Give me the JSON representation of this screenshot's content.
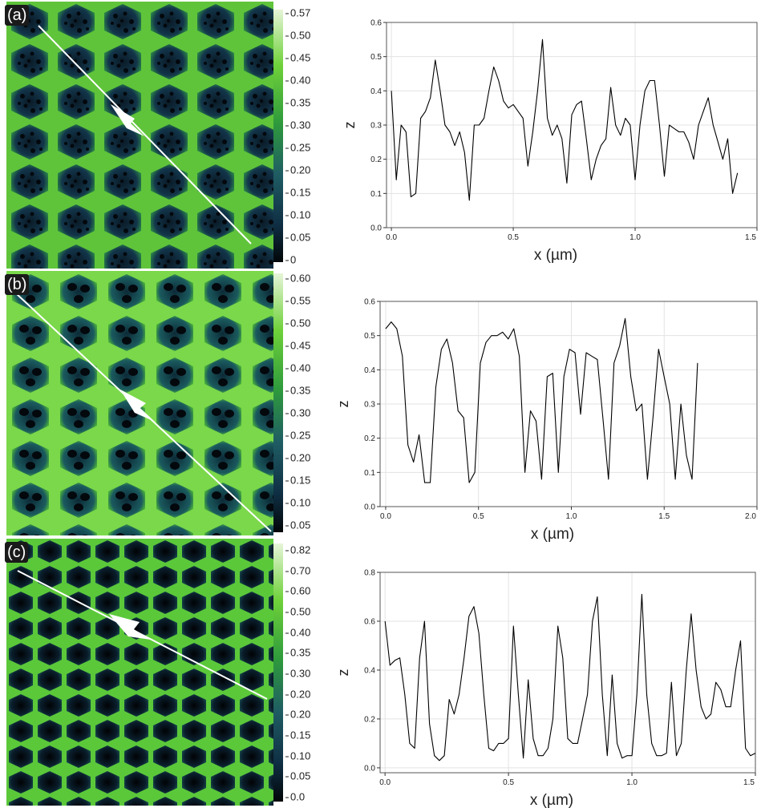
{
  "panels": [
    {
      "label": "(a)",
      "colorbar_ticks": [
        "0.57",
        "0.50",
        "0.45",
        "0.40",
        "0.35",
        "0.30",
        "0.25",
        "0.20",
        "0.15",
        "0.10",
        "0.05",
        "0"
      ]
    },
    {
      "label": "(b)",
      "colorbar_ticks": [
        "0.60",
        "0.55",
        "0.50",
        "0.45",
        "0.40",
        "0.35",
        "0.30",
        "0.25",
        "0.20",
        "0.15",
        "0.10",
        "0.05"
      ]
    },
    {
      "label": "(c)",
      "colorbar_ticks": [
        "0.82",
        "0.70",
        "0.60",
        "0.50",
        "0.40",
        "0.35",
        "0.30",
        "0.20",
        "0.20",
        "0.15",
        "0.10",
        "0.05",
        "0.0"
      ]
    }
  ],
  "colors": {
    "map_dark": "#0b1d2a",
    "map_mid": "#1f5d63",
    "map_bright": "#6fd13a",
    "colorbar_top": "#e6f5d8",
    "line": "#000000",
    "grid": "#e3e3e3"
  },
  "chart_data": [
    {
      "type": "line",
      "xlabel": "x (µm)",
      "ylabel": "z",
      "xlim": [
        -0.02,
        1.5
      ],
      "ylim": [
        0,
        0.6
      ],
      "xticks": [
        "0.0",
        "0.5",
        "1.0",
        "1.5"
      ],
      "xtick_values": [
        0,
        0.5,
        1.0,
        1.5
      ],
      "yticks": [
        "0.0",
        "0.1",
        "0.2",
        "0.3",
        "0.4",
        "0.5",
        "0.6"
      ],
      "ytick_values": [
        0,
        0.1,
        0.2,
        0.3,
        0.4,
        0.5,
        0.6
      ],
      "x": [
        0.0,
        0.02,
        0.04,
        0.06,
        0.08,
        0.1,
        0.12,
        0.14,
        0.16,
        0.18,
        0.2,
        0.22,
        0.24,
        0.26,
        0.28,
        0.3,
        0.32,
        0.34,
        0.36,
        0.38,
        0.4,
        0.42,
        0.44,
        0.46,
        0.48,
        0.5,
        0.52,
        0.54,
        0.56,
        0.58,
        0.6,
        0.62,
        0.64,
        0.66,
        0.68,
        0.7,
        0.72,
        0.74,
        0.76,
        0.78,
        0.8,
        0.82,
        0.84,
        0.86,
        0.88,
        0.9,
        0.92,
        0.94,
        0.96,
        0.98,
        1.0,
        1.02,
        1.04,
        1.06,
        1.08,
        1.1,
        1.12,
        1.14,
        1.16,
        1.18,
        1.2,
        1.22,
        1.24,
        1.26,
        1.28,
        1.3,
        1.32,
        1.34,
        1.36,
        1.38,
        1.4,
        1.42
      ],
      "y": [
        0.4,
        0.14,
        0.3,
        0.28,
        0.09,
        0.1,
        0.32,
        0.34,
        0.38,
        0.49,
        0.4,
        0.3,
        0.28,
        0.24,
        0.28,
        0.22,
        0.08,
        0.3,
        0.3,
        0.32,
        0.4,
        0.47,
        0.43,
        0.37,
        0.35,
        0.36,
        0.34,
        0.32,
        0.18,
        0.28,
        0.4,
        0.55,
        0.32,
        0.27,
        0.3,
        0.26,
        0.13,
        0.33,
        0.36,
        0.37,
        0.26,
        0.14,
        0.2,
        0.24,
        0.26,
        0.41,
        0.3,
        0.27,
        0.32,
        0.3,
        0.14,
        0.3,
        0.4,
        0.43,
        0.43,
        0.3,
        0.15,
        0.3,
        0.29,
        0.28,
        0.28,
        0.25,
        0.2,
        0.3,
        0.34,
        0.38,
        0.3,
        0.25,
        0.2,
        0.26,
        0.1,
        0.16
      ]
    },
    {
      "type": "line",
      "xlabel": "x (µm)",
      "ylabel": "z",
      "xlim": [
        -0.03,
        2.0
      ],
      "ylim": [
        0,
        0.6
      ],
      "xticks": [
        "0.0",
        "0.5",
        "1.0",
        "1.5",
        "2.0"
      ],
      "xtick_values": [
        0,
        0.5,
        1.0,
        1.5,
        2.0
      ],
      "yticks": [
        "0.0",
        "0.1",
        "0.2",
        "0.3",
        "0.4",
        "0.5",
        "0.6"
      ],
      "ytick_values": [
        0,
        0.1,
        0.2,
        0.3,
        0.4,
        0.5,
        0.6
      ],
      "x": [
        0.0,
        0.03,
        0.06,
        0.09,
        0.12,
        0.15,
        0.18,
        0.21,
        0.24,
        0.27,
        0.3,
        0.33,
        0.36,
        0.39,
        0.42,
        0.45,
        0.48,
        0.51,
        0.54,
        0.57,
        0.6,
        0.63,
        0.66,
        0.69,
        0.72,
        0.75,
        0.78,
        0.81,
        0.84,
        0.87,
        0.9,
        0.93,
        0.96,
        0.99,
        1.02,
        1.05,
        1.08,
        1.11,
        1.14,
        1.17,
        1.2,
        1.23,
        1.26,
        1.29,
        1.32,
        1.35,
        1.38,
        1.41,
        1.44,
        1.47,
        1.5,
        1.53,
        1.56,
        1.59,
        1.62,
        1.65,
        1.68
      ],
      "y": [
        0.52,
        0.54,
        0.52,
        0.44,
        0.18,
        0.13,
        0.21,
        0.07,
        0.07,
        0.35,
        0.46,
        0.49,
        0.42,
        0.28,
        0.26,
        0.07,
        0.1,
        0.42,
        0.48,
        0.5,
        0.5,
        0.51,
        0.49,
        0.52,
        0.44,
        0.1,
        0.28,
        0.25,
        0.08,
        0.38,
        0.39,
        0.1,
        0.38,
        0.46,
        0.45,
        0.27,
        0.45,
        0.44,
        0.43,
        0.26,
        0.08,
        0.42,
        0.47,
        0.55,
        0.38,
        0.28,
        0.3,
        0.08,
        0.26,
        0.46,
        0.38,
        0.3,
        0.08,
        0.3,
        0.15,
        0.08,
        0.42
      ]
    },
    {
      "type": "line",
      "xlabel": "x (µm)",
      "ylabel": "z",
      "xlim": [
        -0.02,
        1.5
      ],
      "ylim": [
        -0.02,
        0.8
      ],
      "xticks": [
        "0.0",
        "0.5",
        "1.0",
        "1.5"
      ],
      "xtick_values": [
        0,
        0.5,
        1.0,
        1.5
      ],
      "yticks": [
        "0.0",
        "0.2",
        "0.4",
        "0.6",
        "0.8"
      ],
      "ytick_values": [
        0,
        0.2,
        0.4,
        0.6,
        0.8
      ],
      "x": [
        0.0,
        0.02,
        0.04,
        0.06,
        0.08,
        0.1,
        0.12,
        0.14,
        0.16,
        0.18,
        0.2,
        0.22,
        0.24,
        0.26,
        0.28,
        0.3,
        0.32,
        0.34,
        0.36,
        0.38,
        0.4,
        0.42,
        0.44,
        0.46,
        0.48,
        0.5,
        0.52,
        0.54,
        0.56,
        0.58,
        0.6,
        0.62,
        0.64,
        0.66,
        0.68,
        0.7,
        0.72,
        0.74,
        0.76,
        0.78,
        0.8,
        0.82,
        0.84,
        0.86,
        0.88,
        0.9,
        0.92,
        0.94,
        0.96,
        0.98,
        1.0,
        1.02,
        1.04,
        1.06,
        1.08,
        1.1,
        1.12,
        1.14,
        1.16,
        1.18,
        1.2,
        1.22,
        1.24,
        1.26,
        1.28,
        1.3,
        1.32,
        1.34,
        1.36,
        1.38,
        1.4,
        1.42,
        1.44,
        1.46,
        1.48,
        1.5
      ],
      "y": [
        0.6,
        0.42,
        0.44,
        0.45,
        0.3,
        0.1,
        0.08,
        0.45,
        0.6,
        0.18,
        0.05,
        0.03,
        0.05,
        0.28,
        0.22,
        0.3,
        0.45,
        0.62,
        0.66,
        0.55,
        0.3,
        0.08,
        0.07,
        0.1,
        0.1,
        0.12,
        0.58,
        0.3,
        0.04,
        0.36,
        0.12,
        0.05,
        0.05,
        0.08,
        0.2,
        0.58,
        0.45,
        0.12,
        0.1,
        0.1,
        0.2,
        0.3,
        0.6,
        0.7,
        0.3,
        0.05,
        0.38,
        0.1,
        0.04,
        0.05,
        0.05,
        0.3,
        0.71,
        0.3,
        0.1,
        0.05,
        0.05,
        0.06,
        0.35,
        0.05,
        0.1,
        0.4,
        0.63,
        0.4,
        0.25,
        0.2,
        0.22,
        0.35,
        0.32,
        0.25,
        0.25,
        0.4,
        0.52,
        0.08,
        0.05,
        0.06
      ]
    }
  ]
}
